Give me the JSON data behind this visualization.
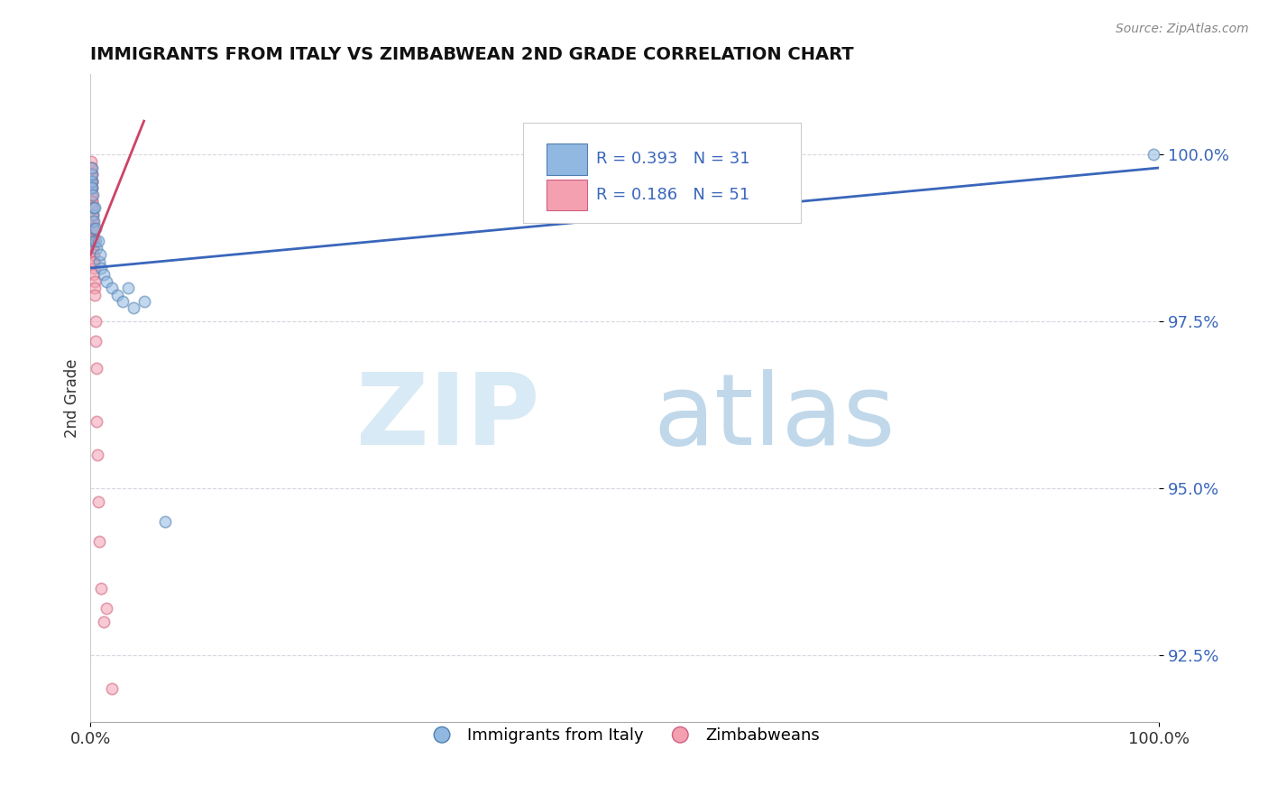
{
  "title": "IMMIGRANTS FROM ITALY VS ZIMBABWEAN 2ND GRADE CORRELATION CHART",
  "source": "Source: ZipAtlas.com",
  "ylabel": "2nd Grade",
  "xlim": [
    0,
    100
  ],
  "ylim": [
    91.5,
    101.2
  ],
  "yticks": [
    92.5,
    95.0,
    97.5,
    100.0
  ],
  "ytick_labels": [
    "92.5%",
    "95.0%",
    "97.5%",
    "100.0%"
  ],
  "xtick_labels": [
    "0.0%",
    "100.0%"
  ],
  "blue_R": 0.393,
  "blue_N": 31,
  "pink_R": 0.186,
  "pink_N": 51,
  "blue_color": "#90B8E0",
  "pink_color": "#F4A0B0",
  "blue_edge_color": "#5080B0",
  "pink_edge_color": "#D06080",
  "blue_line_color": "#3A66BB",
  "pink_line_color": "#CC4466",
  "watermark_zip_color": "#D8EAF5",
  "watermark_atlas_color": "#C0D8EA",
  "background_color": "#FFFFFF",
  "legend_text_color": "#3A66BB",
  "blue_x": [
    0.05,
    0.08,
    0.1,
    0.13,
    0.15,
    0.18,
    0.2,
    0.22,
    0.25,
    0.28,
    0.3,
    0.35,
    0.4,
    0.45,
    0.5,
    0.58,
    0.7,
    0.8,
    0.9,
    1.0,
    1.2,
    1.5,
    2.0,
    2.5,
    3.0,
    3.5,
    4.0,
    5.0,
    7.0,
    50.0,
    99.5
  ],
  "blue_y": [
    99.6,
    99.5,
    99.6,
    99.5,
    99.7,
    99.8,
    98.7,
    99.4,
    99.1,
    99.2,
    98.9,
    99.0,
    99.2,
    98.7,
    98.9,
    98.6,
    98.7,
    98.4,
    98.5,
    98.3,
    98.2,
    98.1,
    98.0,
    97.9,
    97.8,
    98.0,
    97.7,
    97.8,
    94.5,
    99.1,
    100.0
  ],
  "pink_x": [
    0.02,
    0.03,
    0.04,
    0.05,
    0.06,
    0.07,
    0.07,
    0.08,
    0.09,
    0.1,
    0.1,
    0.11,
    0.12,
    0.12,
    0.13,
    0.14,
    0.15,
    0.15,
    0.16,
    0.17,
    0.18,
    0.18,
    0.19,
    0.2,
    0.2,
    0.21,
    0.22,
    0.23,
    0.24,
    0.25,
    0.26,
    0.27,
    0.28,
    0.29,
    0.3,
    0.32,
    0.34,
    0.36,
    0.38,
    0.4,
    0.44,
    0.48,
    0.55,
    0.6,
    0.65,
    0.7,
    0.8,
    1.0,
    1.2,
    1.5,
    2.0
  ],
  "pink_y": [
    99.8,
    99.9,
    99.7,
    99.5,
    99.8,
    99.6,
    99.7,
    99.4,
    99.5,
    99.3,
    99.6,
    99.4,
    99.5,
    99.7,
    99.6,
    99.2,
    99.3,
    99.0,
    98.9,
    99.1,
    99.2,
    98.8,
    99.0,
    99.1,
    98.9,
    98.7,
    98.8,
    98.9,
    98.6,
    98.5,
    98.6,
    98.7,
    98.5,
    98.4,
    98.3,
    98.2,
    98.4,
    98.1,
    98.0,
    97.9,
    97.5,
    97.2,
    96.8,
    96.0,
    95.5,
    94.8,
    94.2,
    93.5,
    93.0,
    93.2,
    92.0
  ],
  "blue_trend": [
    98.3,
    99.8
  ],
  "pink_trend_start_x": 0.0,
  "pink_trend_end_x": 5.0,
  "pink_trend_start_y": 98.5,
  "pink_trend_end_y": 100.5
}
